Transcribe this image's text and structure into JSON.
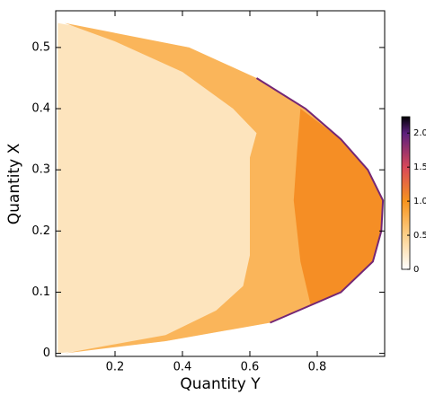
{
  "chart_data": {
    "type": "density",
    "x_label": "Quantity Y",
    "y_label": "Quantity X",
    "xlim": [
      0.024,
      1.0
    ],
    "ylim": [
      -0.005,
      0.56
    ],
    "xticks": [
      0.2,
      0.4,
      0.6,
      0.8
    ],
    "yticks": [
      0,
      0.1,
      0.2,
      0.3,
      0.4,
      0.5
    ],
    "clim": [
      0,
      2.24
    ],
    "cticks": [
      0,
      0.5,
      {
        "value": 1,
        "label": "1.0"
      },
      1.5,
      {
        "value": 2,
        "label": "2.0"
      }
    ],
    "colormap": [
      {
        "value": 0,
        "color": "#ffffff"
      },
      {
        "value": 0.5,
        "color": "#fcd08a"
      },
      {
        "value": 1,
        "color": "#f7941d"
      },
      {
        "value": 1.5,
        "color": "#d8485a"
      },
      {
        "value": 2,
        "color": "#5b1f7c"
      },
      {
        "value": 2.24,
        "color": "#000004"
      }
    ],
    "regions": [
      {
        "level": 0.3,
        "x": [
          0.03,
          0.42,
          0.62,
          0.765,
          0.87,
          0.95,
          0.995,
          0.99,
          0.965,
          0.87,
          0.66,
          0.35,
          0.03
        ],
        "y": [
          0.54,
          0.5,
          0.45,
          0.4,
          0.35,
          0.3,
          0.25,
          0.2,
          0.15,
          0.1,
          0.05,
          0.02,
          0.0
        ]
      },
      {
        "level": 0.75,
        "x": [
          0.05,
          0.42,
          0.62,
          0.765,
          0.87,
          0.95,
          0.995,
          0.99,
          0.965,
          0.87,
          0.66,
          0.35,
          0.05,
          0.35,
          0.5,
          0.58,
          0.6,
          0.6,
          0.6,
          0.62,
          0.55,
          0.4,
          0.2,
          0.05
        ],
        "y": [
          0.54,
          0.5,
          0.45,
          0.4,
          0.35,
          0.3,
          0.25,
          0.2,
          0.15,
          0.1,
          0.05,
          0.02,
          0.0,
          0.03,
          0.07,
          0.11,
          0.16,
          0.25,
          0.32,
          0.36,
          0.4,
          0.46,
          0.51,
          0.54
        ]
      },
      {
        "level": 1.05,
        "x": [
          0.75,
          0.87,
          0.95,
          0.995,
          0.99,
          0.965,
          0.87,
          0.78,
          0.75,
          0.73,
          0.74
        ],
        "y": [
          0.4,
          0.35,
          0.3,
          0.25,
          0.2,
          0.15,
          0.1,
          0.08,
          0.15,
          0.25,
          0.33
        ]
      }
    ],
    "edge": {
      "level": 1.9,
      "x": [
        0.62,
        0.765,
        0.87,
        0.95,
        0.995,
        0.99,
        0.965,
        0.87,
        0.66
      ],
      "y": [
        0.45,
        0.4,
        0.35,
        0.3,
        0.25,
        0.2,
        0.15,
        0.1,
        0.05
      ]
    }
  }
}
